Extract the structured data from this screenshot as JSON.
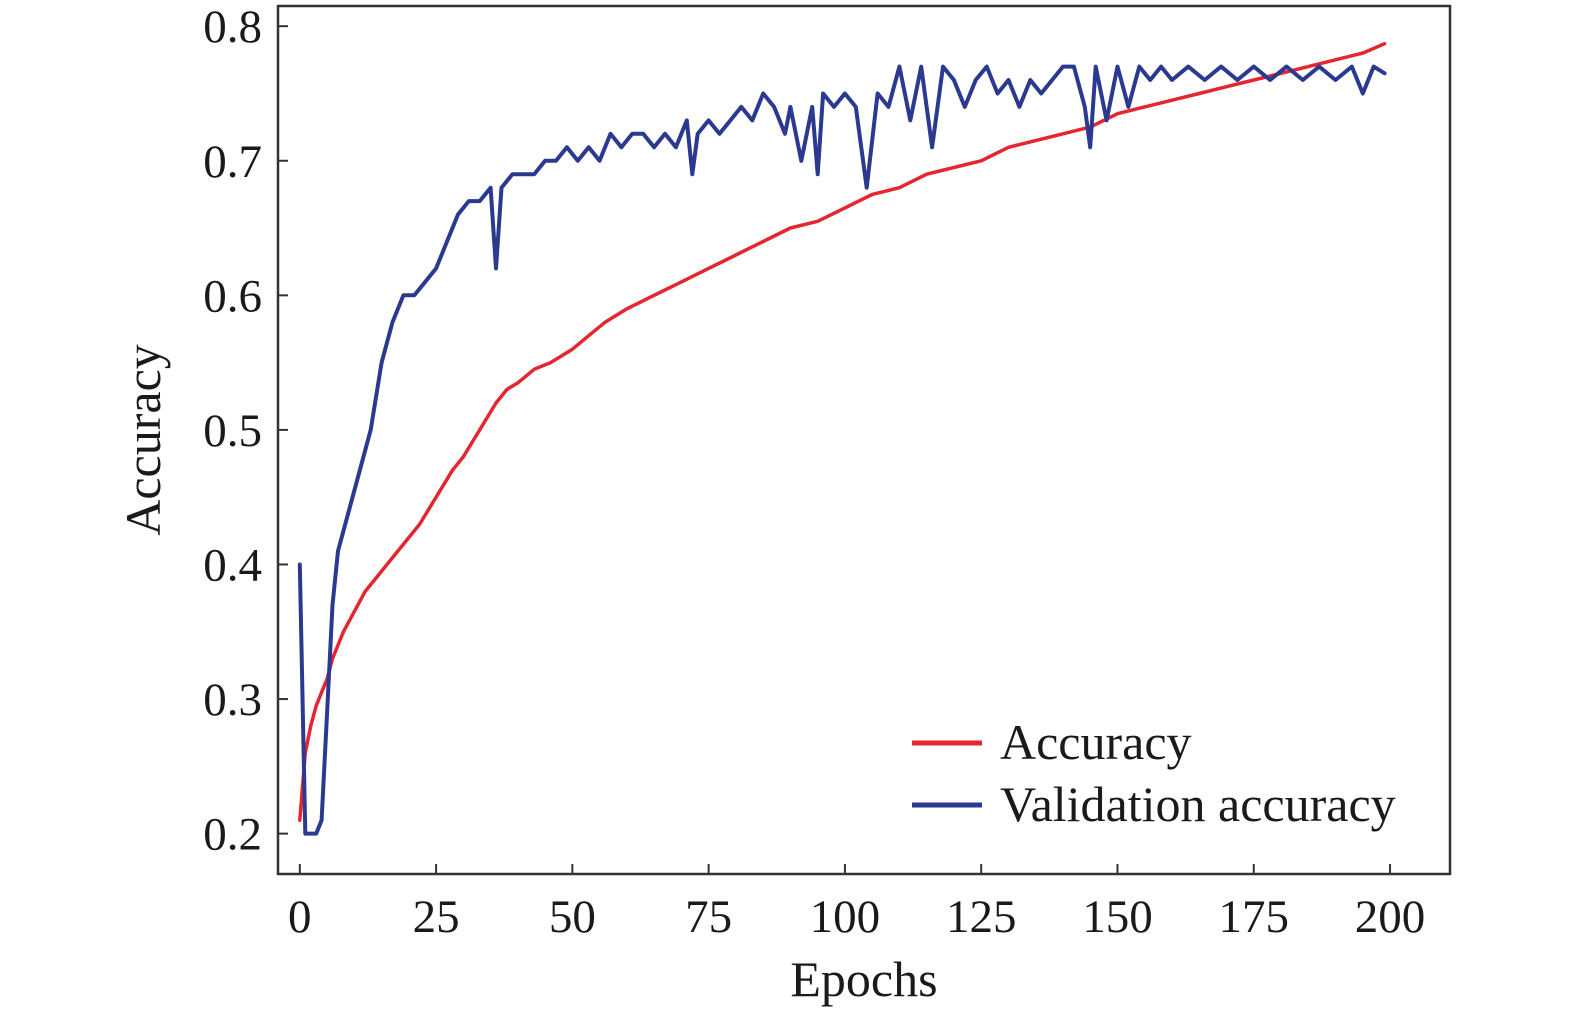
{
  "chart_data": {
    "type": "line",
    "title": "",
    "xlabel": "Epochs",
    "ylabel": "Accuracy",
    "xlim": [
      -4,
      211
    ],
    "ylim": [
      0.17,
      0.815
    ],
    "xticks": [
      0,
      25,
      50,
      75,
      100,
      125,
      150,
      175,
      200
    ],
    "xtick_labels": [
      "0",
      "25",
      "50",
      "75",
      "100",
      "125",
      "150",
      "175",
      "200"
    ],
    "yticks": [
      0.2,
      0.3,
      0.4,
      0.5,
      0.6,
      0.7,
      0.8
    ],
    "ytick_labels": [
      "0.2",
      "0.3",
      "0.4",
      "0.5",
      "0.6",
      "0.7",
      "0.8"
    ],
    "grid": false,
    "legend_position": "bottom-right",
    "series": [
      {
        "name": "Accuracy",
        "color": "#e3262f",
        "points": [
          [
            0,
            0.21
          ],
          [
            1,
            0.26
          ],
          [
            2,
            0.28
          ],
          [
            3,
            0.295
          ],
          [
            4,
            0.305
          ],
          [
            5,
            0.315
          ],
          [
            6,
            0.33
          ],
          [
            8,
            0.35
          ],
          [
            10,
            0.365
          ],
          [
            12,
            0.38
          ],
          [
            15,
            0.395
          ],
          [
            18,
            0.41
          ],
          [
            20,
            0.42
          ],
          [
            22,
            0.43
          ],
          [
            25,
            0.45
          ],
          [
            28,
            0.47
          ],
          [
            30,
            0.48
          ],
          [
            33,
            0.5
          ],
          [
            36,
            0.52
          ],
          [
            38,
            0.53
          ],
          [
            40,
            0.535
          ],
          [
            43,
            0.545
          ],
          [
            46,
            0.55
          ],
          [
            50,
            0.56
          ],
          [
            53,
            0.57
          ],
          [
            56,
            0.58
          ],
          [
            60,
            0.59
          ],
          [
            65,
            0.6
          ],
          [
            70,
            0.61
          ],
          [
            75,
            0.62
          ],
          [
            80,
            0.63
          ],
          [
            85,
            0.64
          ],
          [
            90,
            0.65
          ],
          [
            95,
            0.655
          ],
          [
            100,
            0.665
          ],
          [
            105,
            0.675
          ],
          [
            110,
            0.68
          ],
          [
            115,
            0.69
          ],
          [
            120,
            0.695
          ],
          [
            125,
            0.7
          ],
          [
            130,
            0.71
          ],
          [
            135,
            0.715
          ],
          [
            140,
            0.72
          ],
          [
            145,
            0.725
          ],
          [
            150,
            0.735
          ],
          [
            155,
            0.74
          ],
          [
            160,
            0.745
          ],
          [
            165,
            0.75
          ],
          [
            170,
            0.755
          ],
          [
            175,
            0.76
          ],
          [
            180,
            0.765
          ],
          [
            185,
            0.77
          ],
          [
            190,
            0.775
          ],
          [
            195,
            0.78
          ],
          [
            199,
            0.787
          ]
        ]
      },
      {
        "name": "Validation accuracy",
        "color": "#2b3990",
        "points": [
          [
            0,
            0.4
          ],
          [
            1,
            0.2
          ],
          [
            3,
            0.2
          ],
          [
            4,
            0.21
          ],
          [
            5,
            0.29
          ],
          [
            6,
            0.37
          ],
          [
            7,
            0.41
          ],
          [
            9,
            0.44
          ],
          [
            11,
            0.47
          ],
          [
            13,
            0.5
          ],
          [
            15,
            0.55
          ],
          [
            17,
            0.58
          ],
          [
            19,
            0.6
          ],
          [
            21,
            0.6
          ],
          [
            23,
            0.61
          ],
          [
            25,
            0.62
          ],
          [
            27,
            0.64
          ],
          [
            29,
            0.66
          ],
          [
            31,
            0.67
          ],
          [
            33,
            0.67
          ],
          [
            35,
            0.68
          ],
          [
            36,
            0.62
          ],
          [
            37,
            0.68
          ],
          [
            39,
            0.69
          ],
          [
            41,
            0.69
          ],
          [
            43,
            0.69
          ],
          [
            45,
            0.7
          ],
          [
            47,
            0.7
          ],
          [
            49,
            0.71
          ],
          [
            51,
            0.7
          ],
          [
            53,
            0.71
          ],
          [
            55,
            0.7
          ],
          [
            57,
            0.72
          ],
          [
            59,
            0.71
          ],
          [
            61,
            0.72
          ],
          [
            63,
            0.72
          ],
          [
            65,
            0.71
          ],
          [
            67,
            0.72
          ],
          [
            69,
            0.71
          ],
          [
            71,
            0.73
          ],
          [
            72,
            0.69
          ],
          [
            73,
            0.72
          ],
          [
            75,
            0.73
          ],
          [
            77,
            0.72
          ],
          [
            79,
            0.73
          ],
          [
            81,
            0.74
          ],
          [
            83,
            0.73
          ],
          [
            85,
            0.75
          ],
          [
            87,
            0.74
          ],
          [
            89,
            0.72
          ],
          [
            90,
            0.74
          ],
          [
            92,
            0.7
          ],
          [
            94,
            0.74
          ],
          [
            95,
            0.69
          ],
          [
            96,
            0.75
          ],
          [
            98,
            0.74
          ],
          [
            100,
            0.75
          ],
          [
            102,
            0.74
          ],
          [
            104,
            0.68
          ],
          [
            106,
            0.75
          ],
          [
            108,
            0.74
          ],
          [
            110,
            0.77
          ],
          [
            112,
            0.73
          ],
          [
            114,
            0.77
          ],
          [
            116,
            0.71
          ],
          [
            118,
            0.77
          ],
          [
            120,
            0.76
          ],
          [
            122,
            0.74
          ],
          [
            124,
            0.76
          ],
          [
            126,
            0.77
          ],
          [
            128,
            0.75
          ],
          [
            130,
            0.76
          ],
          [
            132,
            0.74
          ],
          [
            134,
            0.76
          ],
          [
            136,
            0.75
          ],
          [
            138,
            0.76
          ],
          [
            140,
            0.77
          ],
          [
            142,
            0.77
          ],
          [
            144,
            0.74
          ],
          [
            145,
            0.71
          ],
          [
            146,
            0.77
          ],
          [
            148,
            0.73
          ],
          [
            150,
            0.77
          ],
          [
            152,
            0.74
          ],
          [
            154,
            0.77
          ],
          [
            156,
            0.76
          ],
          [
            158,
            0.77
          ],
          [
            160,
            0.76
          ],
          [
            163,
            0.77
          ],
          [
            166,
            0.76
          ],
          [
            169,
            0.77
          ],
          [
            172,
            0.76
          ],
          [
            175,
            0.77
          ],
          [
            178,
            0.76
          ],
          [
            181,
            0.77
          ],
          [
            184,
            0.76
          ],
          [
            187,
            0.77
          ],
          [
            190,
            0.76
          ],
          [
            193,
            0.77
          ],
          [
            195,
            0.75
          ],
          [
            197,
            0.77
          ],
          [
            199,
            0.765
          ]
        ]
      }
    ]
  }
}
